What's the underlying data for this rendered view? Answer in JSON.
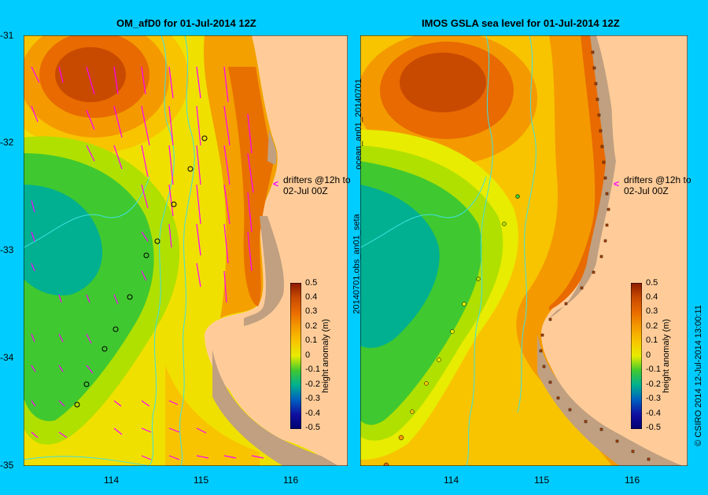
{
  "left_panel": {
    "title": "OM_afD0 for 01-Jul-2014 12Z",
    "drifter_note_line1": "drifters @12h to",
    "drifter_note_line2": "02-Jul 00Z",
    "arrow_color": "#ff00ff"
  },
  "right_panel": {
    "title": "IMOS GSLA sea level  for 01-Jul-2014 12Z",
    "drifter_note_line1": "drifters @12h to",
    "drifter_note_line2": "02-Jul 00Z",
    "side_label_top": "ocean_an01_20140701",
    "side_label_bottom": "20140701.obs_an01_seta"
  },
  "axes": {
    "y_ticks": [
      "-31",
      "-32",
      "-33",
      "-34",
      "-35"
    ],
    "x_ticks": [
      "114",
      "115",
      "116"
    ],
    "lon_range": [
      113,
      116.6
    ],
    "lat_range": [
      -35,
      -31
    ]
  },
  "colorbar": {
    "label": "height anomaly (m)",
    "ticks": [
      "0.5",
      "0.4",
      "0.3",
      "0.2",
      "0.1",
      "0",
      "-0.1",
      "-0.2",
      "-0.3",
      "-0.4",
      "-0.5"
    ],
    "colors": [
      "#8b1a00",
      "#c84a00",
      "#e86a00",
      "#f49a00",
      "#f8c400",
      "#e8ec00",
      "#b0e000",
      "#40c830",
      "#00b090",
      "#0060c0",
      "#1010a0",
      "#000070"
    ]
  },
  "footer": {
    "credit": "© CSIRO 2014   12-Jul-2014 13:00:11"
  },
  "colors": {
    "background": "#00ccff",
    "land": "#ffcc99",
    "shelf": "#c0a080",
    "bathymetry": "#40e0e0"
  }
}
